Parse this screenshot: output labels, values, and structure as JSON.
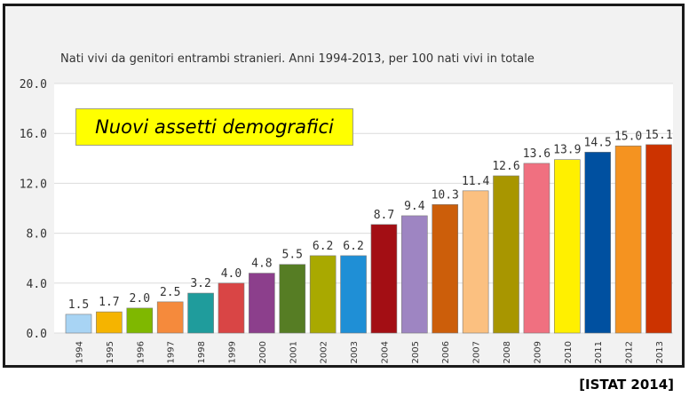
{
  "chart_data": {
    "type": "bar",
    "title": "Nati vivi da genitori entrambi stranieri. Anni 1994-2013, per 100 nati vivi in totale",
    "xlabel": "",
    "ylabel": "",
    "ylim": [
      0,
      20
    ],
    "yticks": [
      "0.0",
      "4.0",
      "8.0",
      "12.0",
      "16.0",
      "20.0"
    ],
    "grid": true,
    "categories": [
      "1994",
      "1995",
      "1996",
      "1997",
      "1998",
      "1999",
      "2000",
      "2001",
      "2002",
      "2003",
      "2004",
      "2005",
      "2006",
      "2007",
      "2008",
      "2009",
      "2010",
      "2011",
      "2012",
      "2013"
    ],
    "values": [
      1.5,
      1.7,
      2.0,
      2.5,
      3.2,
      4.0,
      4.8,
      5.5,
      6.2,
      6.2,
      8.7,
      9.4,
      10.3,
      11.4,
      12.6,
      13.6,
      13.9,
      14.5,
      15.0,
      15.1
    ],
    "value_labels": [
      "1.5",
      "1.7",
      "2.0",
      "2.5",
      "3.2",
      "4.0",
      "4.8",
      "5.5",
      "6.2",
      "6.2",
      "8.7",
      "9.4",
      "10.3",
      "11.4",
      "12.6",
      "13.6",
      "13.9",
      "14.5",
      "15.0",
      "15.1"
    ],
    "colors": [
      "#a8d4f4",
      "#f5b400",
      "#7fb800",
      "#f58a3c",
      "#1f9c9c",
      "#d94545",
      "#8c3f8c",
      "#567d24",
      "#a9a900",
      "#1f8fd6",
      "#a30e14",
      "#9e85c2",
      "#cc5e0a",
      "#fbc080",
      "#a89600",
      "#f07080",
      "#fff000",
      "#0050a0",
      "#f59320",
      "#cc3300"
    ]
  },
  "annotation": "Nuovi assetti demografici",
  "source": "[ISTAT 2014]"
}
